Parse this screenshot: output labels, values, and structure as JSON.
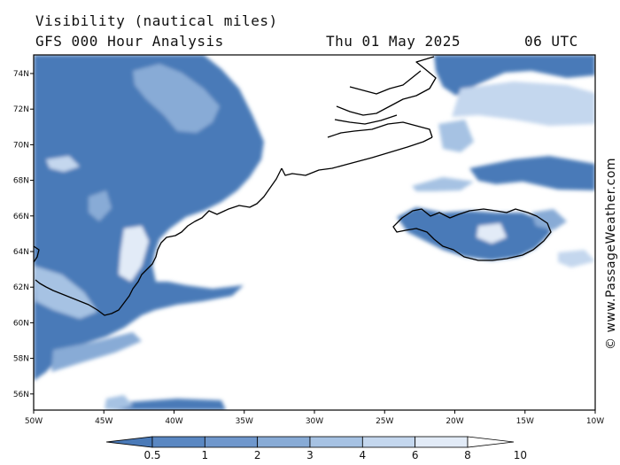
{
  "header": {
    "line1": "Visibility (nautical miles)",
    "line2": "GFS 000 Hour Analysis",
    "date": "Thu 01 May 2025",
    "time": "06 UTC"
  },
  "axes": {
    "x_ticks": [
      "50W",
      "45W",
      "40W",
      "35W",
      "30W",
      "25W",
      "20W",
      "15W",
      "10W"
    ],
    "y_ticks": [
      "74N",
      "72N",
      "70N",
      "68N",
      "66N",
      "64N",
      "62N",
      "60N",
      "58N",
      "56N"
    ]
  },
  "colorbar": {
    "labels": [
      "0.5",
      "1",
      "2",
      "3",
      "4",
      "6",
      "8",
      "10"
    ],
    "colors": [
      "#4a7ab8",
      "#5a87c2",
      "#6f97cc",
      "#88abd6",
      "#a6c2e3",
      "#c4d7ee",
      "#e2ebf7",
      "#ffffff"
    ]
  },
  "watermark": "© www.PassageWeather.com",
  "palette": {
    "low_vis": "#4a7ab8",
    "mid_vis": "#7fa3d3",
    "light_vis": "#c9dbf0",
    "clear": "#ffffff",
    "coast": "#000000"
  }
}
